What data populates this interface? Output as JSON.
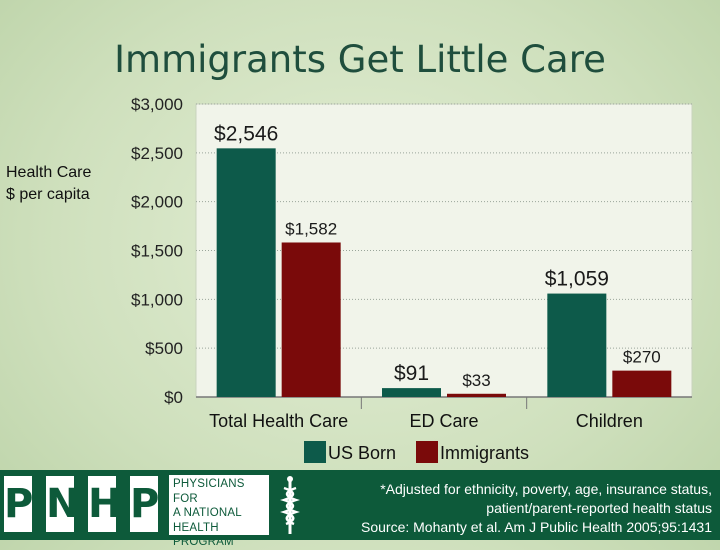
{
  "title": "Immigrants Get Little Care",
  "ylabel_lines": [
    "Health Care",
    "$ per capita"
  ],
  "chart_data": {
    "type": "bar",
    "categories": [
      "Total Health Care",
      "ED Care",
      "Children"
    ],
    "series": [
      {
        "name": "US Born",
        "values": [
          2546,
          91,
          1059
        ],
        "labels": [
          "$2,546",
          "$91",
          "$1,059"
        ],
        "color": "#0d5a4a"
      },
      {
        "name": "Immigrants",
        "values": [
          1582,
          33,
          270
        ],
        "labels": [
          "$1,582",
          "$33",
          "$270"
        ],
        "color": "#7a0a0a"
      }
    ],
    "yticks": [
      0,
      500,
      1000,
      1500,
      2000,
      2500,
      3000
    ],
    "ytick_labels": [
      "$0",
      "$500",
      "$1,000",
      "$1,500",
      "$2,000",
      "$2,500",
      "$3,000"
    ],
    "ylim": [
      0,
      3000
    ],
    "grid": true,
    "legend_position": "bottom"
  },
  "footer": {
    "logo_letters": [
      "P",
      "N",
      "H",
      "P"
    ],
    "logo_text": "PHYSICIANS FOR\nA NATIONAL\nHEALTH\nPROGRAM",
    "note_lines": [
      "*Adjusted for ethnicity, poverty, age, insurance status,",
      "patient/parent-reported health status",
      "Source: Mohanty et al. Am J Public Health 2005;95:1431"
    ],
    "colors": {
      "band": "#0d5a3a"
    }
  }
}
